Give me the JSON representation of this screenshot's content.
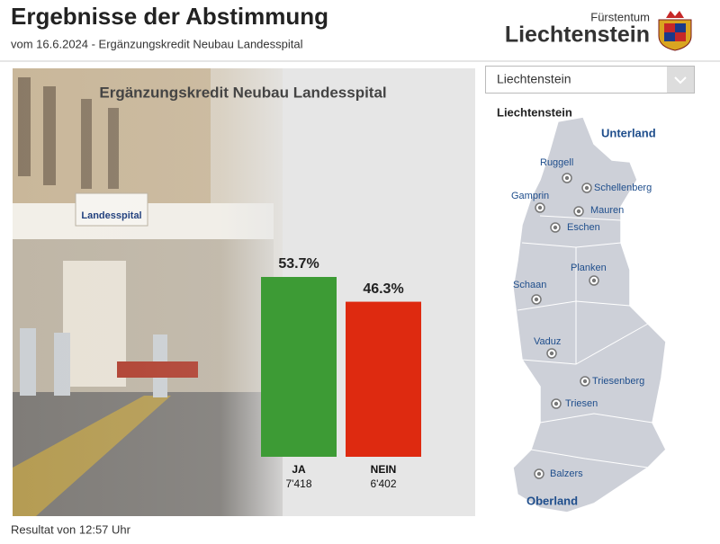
{
  "header": {
    "title": "Ergebnisse der Abstimmung",
    "subtitle": "vom 16.6.2024 - Ergänzungskredit Neubau Landesspital",
    "logo_top": "Fürstentum",
    "logo_main": "Liechtenstein"
  },
  "chart_data": {
    "type": "bar",
    "title": "Ergänzungskredit Neubau Landesspital",
    "categories": [
      "JA",
      "NEIN"
    ],
    "values": [
      53.7,
      46.3
    ],
    "value_labels": [
      "53.7%",
      "46.3%"
    ],
    "counts": [
      "7'418",
      "6'402"
    ],
    "colors": [
      "#3d9b35",
      "#de2a10"
    ]
  },
  "selector": {
    "selected": "Liechtenstein"
  },
  "map": {
    "title": "Liechtenstein",
    "regions": [
      "Unterland",
      "Oberland"
    ],
    "municipalities": [
      "Ruggell",
      "Schellenberg",
      "Gamprin",
      "Mauren",
      "Eschen",
      "Planken",
      "Schaan",
      "Vaduz",
      "Triesenberg",
      "Triesen",
      "Balzers"
    ]
  },
  "footer": {
    "note": "Resultat von 12:57 Uhr"
  }
}
